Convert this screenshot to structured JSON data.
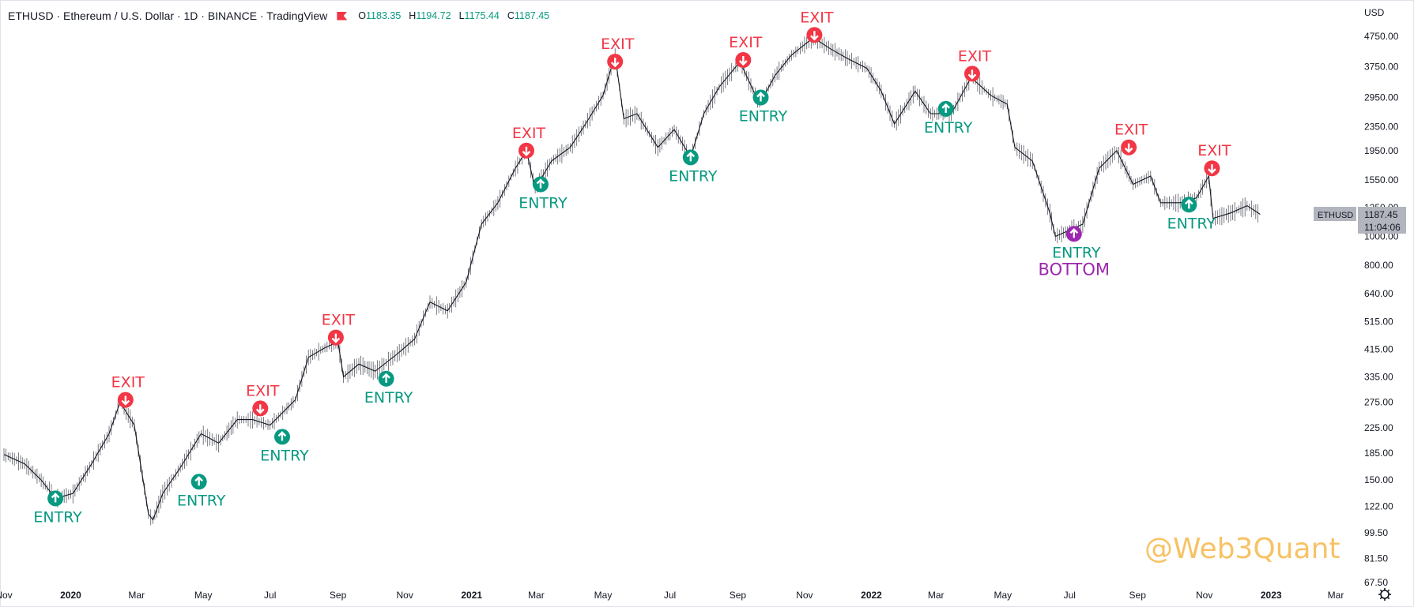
{
  "header": {
    "title": "ETHUSD · Ethereum / U.S. Dollar · 1D · BINANCE · TradingView",
    "ohlc": [
      {
        "key": "O",
        "value": "1183.35"
      },
      {
        "key": "H",
        "value": "1194.72"
      },
      {
        "key": "L",
        "value": "1175.44"
      },
      {
        "key": "C",
        "value": "1187.45"
      }
    ]
  },
  "price_axis": {
    "currency": "USD",
    "last_symbol": "ETHUSD",
    "last_price": "1187.45",
    "countdown": "11:04:06"
  },
  "watermark": "@Web3Quant",
  "colors": {
    "exit": "#f23645",
    "entry": "#089981",
    "bottom": "#9c27b0",
    "candle": "#131722",
    "watermark": "#f7c265"
  },
  "chart_data": {
    "type": "line",
    "y_scale": "log",
    "ylim": [
      67.5,
      4750
    ],
    "y_ticks": [
      4750,
      3750,
      2950,
      2350,
      1950,
      1550,
      1250,
      1000,
      800,
      640,
      515,
      415,
      335,
      275,
      225,
      185,
      150,
      122,
      99.5,
      81.5,
      67.5
    ],
    "y_tick_labels": [
      "4750.00",
      "3750.00",
      "2950.00",
      "2350.00",
      "1950.00",
      "1550.00",
      "1250.00",
      "1000.00",
      "800.00",
      "640.00",
      "515.00",
      "415.00",
      "335.00",
      "275.00",
      "225.00",
      "185.00",
      "150.00",
      "122.00",
      "99.50",
      "81.50",
      "67.50"
    ],
    "x_ticks": [
      "Nov",
      "2020",
      "Mar",
      "May",
      "Jul",
      "Sep",
      "Nov",
      "2021",
      "Mar",
      "May",
      "Jul",
      "Sep",
      "Nov",
      "2022",
      "Mar",
      "May",
      "Jul",
      "Sep",
      "Nov",
      "2023",
      "Mar"
    ],
    "x_tick_dates": [
      "2019-11-01",
      "2020-01-01",
      "2020-03-01",
      "2020-05-01",
      "2020-07-01",
      "2020-09-01",
      "2020-11-01",
      "2021-01-01",
      "2021-03-01",
      "2021-05-01",
      "2021-07-01",
      "2021-09-01",
      "2021-11-01",
      "2022-01-01",
      "2022-03-01",
      "2022-05-01",
      "2022-07-01",
      "2022-09-01",
      "2022-11-01",
      "2023-01-01",
      "2023-03-01"
    ],
    "series": [
      {
        "points": [
          [
            "2019-11-01",
            183
          ],
          [
            "2019-11-20",
            170
          ],
          [
            "2019-12-05",
            150
          ],
          [
            "2019-12-18",
            130
          ],
          [
            "2020-01-03",
            135
          ],
          [
            "2020-01-20",
            170
          ],
          [
            "2020-02-05",
            215
          ],
          [
            "2020-02-15",
            275
          ],
          [
            "2020-02-28",
            230
          ],
          [
            "2020-03-12",
            115
          ],
          [
            "2020-03-16",
            110
          ],
          [
            "2020-03-25",
            135
          ],
          [
            "2020-04-10",
            165
          ],
          [
            "2020-04-29",
            215
          ],
          [
            "2020-05-15",
            200
          ],
          [
            "2020-06-01",
            240
          ],
          [
            "2020-06-15",
            240
          ],
          [
            "2020-07-01",
            230
          ],
          [
            "2020-07-24",
            280
          ],
          [
            "2020-08-05",
            390
          ],
          [
            "2020-08-20",
            420
          ],
          [
            "2020-09-01",
            440
          ],
          [
            "2020-09-06",
            335
          ],
          [
            "2020-09-20",
            370
          ],
          [
            "2020-10-05",
            350
          ],
          [
            "2020-10-25",
            400
          ],
          [
            "2020-11-10",
            450
          ],
          [
            "2020-11-24",
            600
          ],
          [
            "2020-12-10",
            560
          ],
          [
            "2020-12-27",
            700
          ],
          [
            "2021-01-10",
            1100
          ],
          [
            "2021-01-25",
            1300
          ],
          [
            "2021-02-10",
            1700
          ],
          [
            "2021-02-20",
            1950
          ],
          [
            "2021-02-28",
            1450
          ],
          [
            "2021-03-15",
            1800
          ],
          [
            "2021-04-01",
            2000
          ],
          [
            "2021-04-15",
            2400
          ],
          [
            "2021-05-01",
            3000
          ],
          [
            "2021-05-12",
            4100
          ],
          [
            "2021-05-20",
            2500
          ],
          [
            "2021-06-01",
            2600
          ],
          [
            "2021-06-20",
            2000
          ],
          [
            "2021-07-05",
            2300
          ],
          [
            "2021-07-20",
            1850
          ],
          [
            "2021-08-01",
            2600
          ],
          [
            "2021-08-15",
            3200
          ],
          [
            "2021-09-03",
            3900
          ],
          [
            "2021-09-21",
            2800
          ],
          [
            "2021-10-05",
            3500
          ],
          [
            "2021-10-20",
            4100
          ],
          [
            "2021-11-09",
            4700
          ],
          [
            "2021-11-25",
            4300
          ],
          [
            "2021-12-10",
            4000
          ],
          [
            "2021-12-28",
            3700
          ],
          [
            "2022-01-10",
            3100
          ],
          [
            "2022-01-22",
            2400
          ],
          [
            "2022-02-10",
            3100
          ],
          [
            "2022-02-24",
            2600
          ],
          [
            "2022-03-15",
            2600
          ],
          [
            "2022-04-02",
            3450
          ],
          [
            "2022-04-20",
            3000
          ],
          [
            "2022-05-05",
            2800
          ],
          [
            "2022-05-12",
            2000
          ],
          [
            "2022-05-28",
            1800
          ],
          [
            "2022-06-13",
            1200
          ],
          [
            "2022-06-18",
            1000
          ],
          [
            "2022-07-01",
            1050
          ],
          [
            "2022-07-13",
            1100
          ],
          [
            "2022-07-28",
            1700
          ],
          [
            "2022-08-13",
            1950
          ],
          [
            "2022-08-28",
            1500
          ],
          [
            "2022-09-13",
            1600
          ],
          [
            "2022-09-22",
            1300
          ],
          [
            "2022-10-10",
            1300
          ],
          [
            "2022-10-25",
            1350
          ],
          [
            "2022-11-05",
            1600
          ],
          [
            "2022-11-09",
            1150
          ],
          [
            "2022-11-25",
            1200
          ],
          [
            "2022-12-10",
            1270
          ],
          [
            "2022-12-22",
            1187.45
          ]
        ]
      }
    ],
    "annotations": [
      {
        "kind": "entry",
        "date": "2019-12-18",
        "price": 130,
        "label": "ENTRY"
      },
      {
        "kind": "exit",
        "date": "2020-02-20",
        "price": 280,
        "label": "EXIT"
      },
      {
        "kind": "entry",
        "date": "2020-04-27",
        "price": 148,
        "label": "ENTRY"
      },
      {
        "kind": "exit",
        "date": "2020-06-22",
        "price": 262,
        "label": "EXIT"
      },
      {
        "kind": "entry",
        "date": "2020-07-12",
        "price": 210,
        "label": "ENTRY"
      },
      {
        "kind": "exit",
        "date": "2020-08-30",
        "price": 455,
        "label": "EXIT"
      },
      {
        "kind": "entry",
        "date": "2020-10-15",
        "price": 330,
        "label": "ENTRY"
      },
      {
        "kind": "exit",
        "date": "2021-02-20",
        "price": 1950,
        "label": "EXIT"
      },
      {
        "kind": "entry",
        "date": "2021-03-05",
        "price": 1500,
        "label": "ENTRY"
      },
      {
        "kind": "exit",
        "date": "2021-05-12",
        "price": 3900,
        "label": "EXIT"
      },
      {
        "kind": "entry",
        "date": "2021-07-20",
        "price": 1850,
        "label": "ENTRY"
      },
      {
        "kind": "exit",
        "date": "2021-09-06",
        "price": 3950,
        "label": "EXIT"
      },
      {
        "kind": "entry",
        "date": "2021-09-22",
        "price": 2950,
        "label": "ENTRY"
      },
      {
        "kind": "exit",
        "date": "2021-11-10",
        "price": 4800,
        "label": "EXIT"
      },
      {
        "kind": "entry",
        "date": "2022-03-10",
        "price": 2700,
        "label": "ENTRY"
      },
      {
        "kind": "exit",
        "date": "2022-04-03",
        "price": 3550,
        "label": "EXIT"
      },
      {
        "kind": "entry",
        "date": "2022-07-05",
        "price": 1020,
        "label": "ENTRY",
        "extra": "BOTTOM"
      },
      {
        "kind": "exit",
        "date": "2022-08-24",
        "price": 2000,
        "label": "EXIT"
      },
      {
        "kind": "entry",
        "date": "2022-10-18",
        "price": 1280,
        "label": "ENTRY"
      },
      {
        "kind": "exit",
        "date": "2022-11-08",
        "price": 1700,
        "label": "EXIT"
      }
    ]
  }
}
